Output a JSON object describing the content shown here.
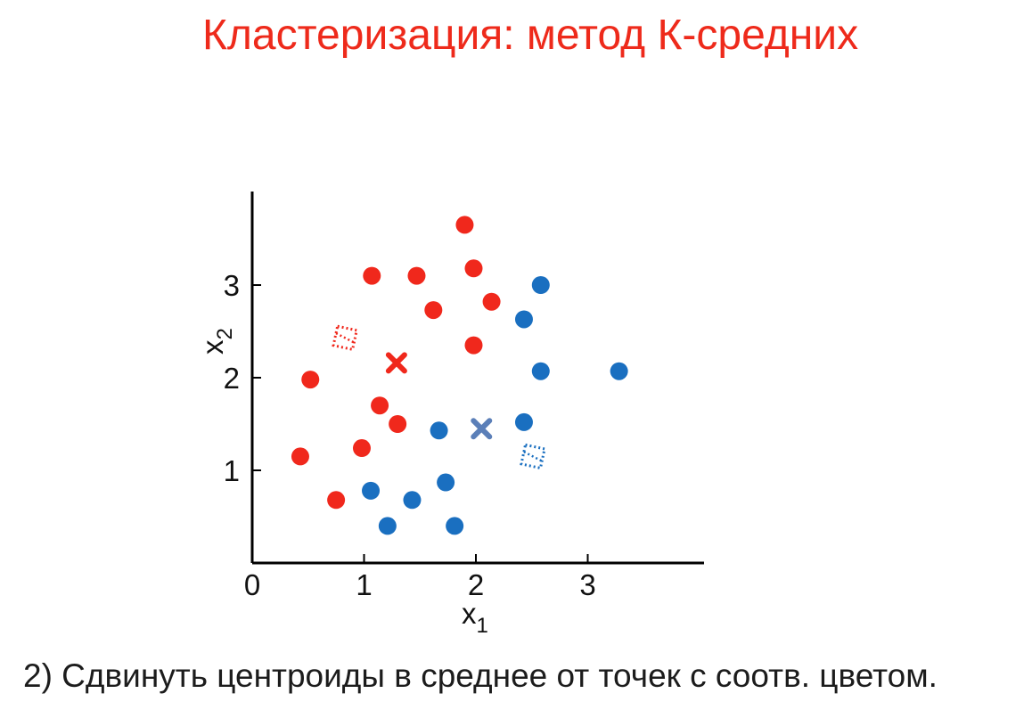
{
  "slide": {
    "title": "Кластеризация: метод К-средних",
    "caption": "2) Сдвинуть центроиды в среднее от точек с соотв. цветом."
  },
  "colors": {
    "red": "#f0281c",
    "blue": "#1a6fc0",
    "blue_centroid": "#5b7fb8",
    "title": "#ee2a1b"
  },
  "chart_data": {
    "type": "scatter",
    "title": "",
    "xlabel": "x",
    "xlabel_sub": "1",
    "ylabel": "x",
    "ylabel_sub": "2",
    "xlim": [
      0,
      4
    ],
    "ylim": [
      0,
      4
    ],
    "xticks": [
      0,
      1,
      2,
      3
    ],
    "yticks": [
      1,
      2,
      3
    ],
    "grid": false,
    "series": [
      {
        "color": "red",
        "points": [
          [
            1.9,
            3.65
          ],
          [
            1.98,
            3.18
          ],
          [
            1.07,
            3.1
          ],
          [
            1.47,
            3.1
          ],
          [
            2.14,
            2.82
          ],
          [
            1.62,
            2.73
          ],
          [
            1.98,
            2.35
          ],
          [
            0.52,
            1.98
          ],
          [
            1.14,
            1.7
          ],
          [
            1.3,
            1.5
          ],
          [
            0.98,
            1.24
          ],
          [
            0.43,
            1.15
          ],
          [
            0.75,
            0.68
          ]
        ]
      },
      {
        "color": "blue",
        "points": [
          [
            2.58,
            3.0
          ],
          [
            2.43,
            2.63
          ],
          [
            2.58,
            2.07
          ],
          [
            3.28,
            2.07
          ],
          [
            2.43,
            1.52
          ],
          [
            1.67,
            1.43
          ],
          [
            1.73,
            0.87
          ],
          [
            1.06,
            0.78
          ],
          [
            1.43,
            0.68
          ],
          [
            1.21,
            0.4
          ],
          [
            1.81,
            0.4
          ]
        ]
      }
    ],
    "centroids": [
      {
        "cluster": "red",
        "position": [
          1.29,
          2.16
        ]
      },
      {
        "cluster": "blue",
        "position": [
          2.05,
          1.45
        ]
      }
    ],
    "old_centroids": [
      {
        "cluster": "red",
        "position": [
          0.83,
          2.43
        ]
      },
      {
        "cluster": "blue",
        "position": [
          2.51,
          1.15
        ]
      }
    ]
  }
}
